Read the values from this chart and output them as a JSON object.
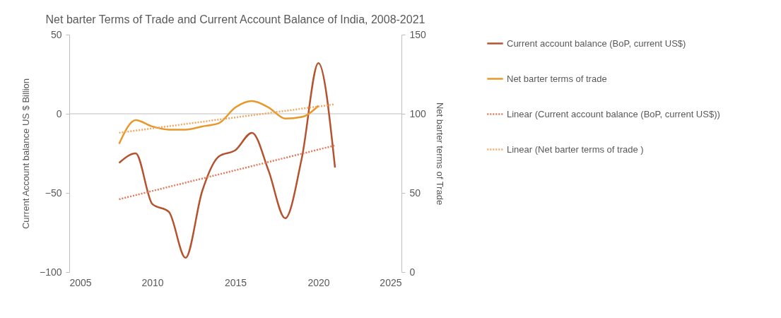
{
  "chart_data": {
    "type": "line",
    "title": "Net barter Terms of Trade and Current Account Balance of India, 2008-2021",
    "ylabel": "Current Account balance US $ Billion",
    "y2label": "Net barter terms of Trade",
    "x": [
      2008,
      2009,
      2010,
      2011,
      2012,
      2013,
      2014,
      2015,
      2016,
      2017,
      2018,
      2019,
      2020,
      2021
    ],
    "series": [
      {
        "name": "Current account balance (BoP, current US$)",
        "color": "#b5532f",
        "axis": "y",
        "values": [
          -31,
          -25,
          -57,
          -62,
          -91,
          -49,
          -27,
          -23,
          -12,
          -36,
          -66,
          -28,
          32,
          -34
        ]
      },
      {
        "name": "Net barter terms of trade",
        "color": "#e8982a",
        "axis": "y2",
        "x": [
          2008,
          2009,
          2010,
          2011,
          2012,
          2013,
          2014,
          2015,
          2016,
          2017,
          2018,
          2019,
          2020
        ],
        "values": [
          81,
          96,
          92,
          90,
          90,
          92,
          94,
          104,
          108,
          104,
          97,
          98,
          105
        ]
      },
      {
        "name": "Linear (Current account balance (BoP, current US$))",
        "color": "#e07a5a",
        "axis": "y",
        "line_style": "dotted",
        "x": [
          2008,
          2021
        ],
        "values": [
          -54,
          -20
        ]
      },
      {
        "name": "Linear (Net barter terms of trade )",
        "color": "#f0a860",
        "axis": "y2",
        "line_style": "dotted",
        "x": [
          2008,
          2021
        ],
        "values": [
          88,
          106
        ]
      }
    ],
    "xlim": [
      2005,
      2025
    ],
    "xticks": [
      2005,
      2010,
      2015,
      2020,
      2025
    ],
    "ylim": [
      -100,
      50
    ],
    "yticks": [
      -100,
      -50,
      0,
      50
    ],
    "y2lim": [
      0,
      150
    ],
    "y2ticks": [
      0,
      50,
      100,
      150
    ],
    "ref_lines": [
      {
        "axis": "y",
        "value": 0,
        "color": "#bfbfbf"
      }
    ],
    "grid": false,
    "legend": "right",
    "marker": "none",
    "line_style": "solid"
  }
}
